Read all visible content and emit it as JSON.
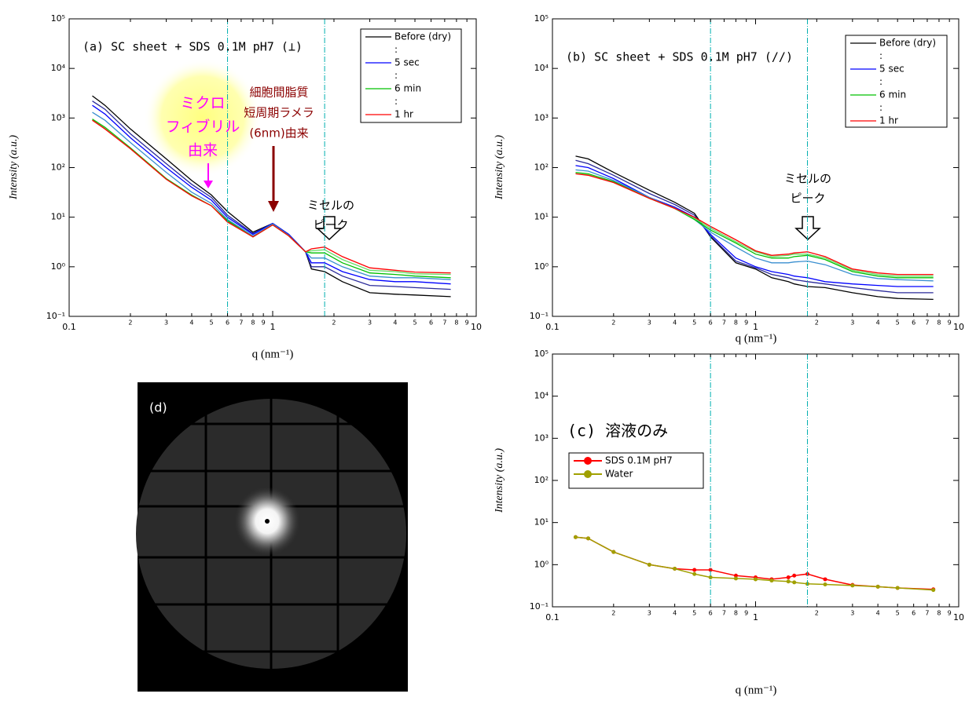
{
  "chart_data": [
    {
      "type": "line",
      "title": "(a)  SC sheet + SDS 0.1M  pH7 (⊥)",
      "xlabel": "q (nm⁻¹)",
      "ylabel": "Intensity (a.u.)",
      "log_x": true,
      "log_y": true,
      "xlim": [
        0.1,
        10
      ],
      "ylim": [
        0.1,
        100000
      ],
      "xticks": [
        0.1,
        1,
        10
      ],
      "xminor_ticks": [
        {
          "value": 0.2,
          "label": "2"
        },
        {
          "value": 0.3,
          "label": "3"
        },
        {
          "value": 0.4,
          "label": "4"
        },
        {
          "value": 0.5,
          "label": "5"
        },
        {
          "value": 0.6,
          "label": "6"
        },
        {
          "value": 0.7,
          "label": "7"
        },
        {
          "value": 0.8,
          "label": "8"
        },
        {
          "value": 0.9,
          "label": "9"
        },
        2,
        3,
        4,
        5,
        6,
        7,
        8,
        9
      ],
      "yticks": [
        {
          "value": 0.1,
          "label": "10⁻¹"
        },
        {
          "value": 1,
          "label": "10⁰"
        },
        {
          "value": 10,
          "label": "10¹"
        },
        {
          "value": 100,
          "label": "10²"
        },
        {
          "value": 1000,
          "label": "10³"
        },
        {
          "value": 10000,
          "label": "10⁴"
        },
        {
          "value": 100000,
          "label": "10⁵"
        }
      ],
      "vlines": [
        0.6,
        1.8
      ],
      "vline_color": "#00b0b0",
      "x": [
        0.13,
        0.15,
        0.2,
        0.3,
        0.4,
        0.5,
        0.6,
        0.8,
        1.0,
        1.2,
        1.45,
        1.55,
        1.8,
        2.2,
        3,
        4,
        5,
        7.5
      ],
      "series": [
        {
          "name": "Before (dry)",
          "color": "#000000",
          "values": [
            2800,
            1800,
            600,
            150,
            55,
            28,
            13,
            5,
            7.5,
            4.5,
            2,
            0.9,
            0.8,
            0.5,
            0.3,
            0.28,
            0.27,
            0.25
          ]
        },
        {
          "name": ":",
          "color": "#2a2a9a",
          "legend_swatch": false,
          "values": [
            2200,
            1500,
            480,
            120,
            46,
            25,
            11,
            4.7,
            7.5,
            4.5,
            2,
            1.0,
            1.0,
            0.65,
            0.42,
            0.4,
            0.38,
            0.35
          ]
        },
        {
          "name": "5 sec",
          "color": "#0000ff",
          "values": [
            1800,
            1200,
            400,
            100,
            40,
            22,
            10,
            4.5,
            7.5,
            4.5,
            2,
            1.2,
            1.2,
            0.8,
            0.55,
            0.5,
            0.5,
            0.45
          ]
        },
        {
          "name": ":",
          "color": "#3a8fd0",
          "legend_swatch": false,
          "values": [
            1300,
            900,
            320,
            80,
            32,
            19,
            9,
            4.2,
            7.3,
            4.3,
            2,
            1.5,
            1.5,
            1.0,
            0.65,
            0.6,
            0.6,
            0.55
          ]
        },
        {
          "name": "6 min",
          "color": "#00c000",
          "values": [
            950,
            650,
            250,
            60,
            28,
            17,
            8.5,
            4,
            7,
            4.2,
            2,
            1.9,
            1.9,
            1.2,
            0.75,
            0.7,
            0.65,
            0.6
          ]
        },
        {
          "name": ":",
          "color": "#66dd66",
          "legend_swatch": false,
          "values": [
            900,
            620,
            240,
            58,
            27,
            17,
            8,
            4,
            7,
            4.2,
            2,
            2.1,
            2.2,
            1.4,
            0.85,
            0.8,
            0.72,
            0.7
          ]
        },
        {
          "name": "1 hr",
          "color": "#ff0000",
          "values": [
            900,
            600,
            240,
            58,
            27,
            17,
            8,
            4,
            7,
            4.2,
            2,
            2.3,
            2.5,
            1.6,
            0.95,
            0.85,
            0.78,
            0.75
          ]
        }
      ],
      "annotations": [
        {
          "lines": [
            "ミクロ",
            "フィブリル",
            "由来"
          ],
          "color": "#ff00ff"
        },
        {
          "lines": [
            "細胞間脂質",
            "短周期ラメラ",
            "(6nm)由来"
          ],
          "color": "#8b0000"
        },
        {
          "lines": [
            "ミセルの",
            "ピーク"
          ],
          "color": "#000000"
        }
      ]
    },
    {
      "type": "line",
      "title": "(b)  SC sheet + SDS 0.1M  pH7 (//)",
      "xlabel": "q (nm⁻¹)",
      "ylabel": "Intensity (a.u.)",
      "log_x": true,
      "log_y": true,
      "xlim": [
        0.1,
        10
      ],
      "ylim": [
        0.1,
        100000
      ],
      "xticks": [
        0.1,
        1,
        10
      ],
      "xminor_ticks": [
        {
          "value": 0.2,
          "label": "2"
        },
        {
          "value": 0.3,
          "label": "3"
        },
        {
          "value": 0.4,
          "label": "4"
        },
        {
          "value": 0.5,
          "label": "5"
        },
        {
          "value": 0.6,
          "label": "6"
        },
        {
          "value": 0.7,
          "label": "7"
        },
        {
          "value": 0.8,
          "label": "8"
        },
        {
          "value": 0.9,
          "label": "9"
        },
        2,
        3,
        4,
        5,
        6,
        7,
        8,
        9
      ],
      "yticks": [
        {
          "value": 0.1,
          "label": "10⁻¹"
        },
        {
          "value": 1,
          "label": "10⁰"
        },
        {
          "value": 10,
          "label": "10¹"
        },
        {
          "value": 100,
          "label": "10²"
        },
        {
          "value": 1000,
          "label": "10³"
        },
        {
          "value": 10000,
          "label": "10⁴"
        },
        {
          "value": 100000,
          "label": "10⁵"
        }
      ],
      "vlines": [
        0.6,
        1.8
      ],
      "vline_color": "#00b0b0",
      "x": [
        0.13,
        0.15,
        0.2,
        0.3,
        0.4,
        0.5,
        0.6,
        0.8,
        1.0,
        1.2,
        1.45,
        1.55,
        1.8,
        2.2,
        3,
        4,
        5,
        7.5
      ],
      "series": [
        {
          "name": "Before (dry)",
          "color": "#000000",
          "values": [
            170,
            150,
            80,
            35,
            20,
            12,
            4,
            1.2,
            0.9,
            0.6,
            0.5,
            0.45,
            0.4,
            0.38,
            0.3,
            0.25,
            0.23,
            0.22
          ]
        },
        {
          "name": ":",
          "color": "#2a2a9a",
          "legend_swatch": false,
          "values": [
            140,
            120,
            70,
            30,
            18,
            11,
            4.2,
            1.3,
            0.95,
            0.7,
            0.6,
            0.55,
            0.5,
            0.45,
            0.38,
            0.33,
            0.3,
            0.3
          ]
        },
        {
          "name": "5 sec",
          "color": "#0000ff",
          "values": [
            110,
            100,
            60,
            25,
            16,
            10,
            4.5,
            1.5,
            1.0,
            0.8,
            0.7,
            0.65,
            0.6,
            0.5,
            0.45,
            0.42,
            0.4,
            0.4
          ]
        },
        {
          "name": ":",
          "color": "#3a8fd0",
          "legend_swatch": false,
          "values": [
            90,
            85,
            55,
            25,
            15,
            9,
            5,
            2.5,
            1.5,
            1.2,
            1.2,
            1.25,
            1.3,
            1.1,
            0.7,
            0.58,
            0.55,
            0.52
          ]
        },
        {
          "name": "6 min",
          "color": "#00c000",
          "values": [
            80,
            75,
            52,
            24,
            15,
            9,
            5.5,
            3,
            1.8,
            1.5,
            1.5,
            1.6,
            1.7,
            1.4,
            0.8,
            0.65,
            0.6,
            0.6
          ]
        },
        {
          "name": ":",
          "color": "#66dd66",
          "legend_swatch": false,
          "values": [
            78,
            72,
            50,
            24,
            15,
            9.5,
            6,
            3.2,
            2,
            1.6,
            1.7,
            1.8,
            1.8,
            1.5,
            0.85,
            0.7,
            0.65,
            0.65
          ]
        },
        {
          "name": "1 hr",
          "color": "#ff0000",
          "values": [
            75,
            70,
            50,
            24,
            15,
            10,
            6.5,
            3.5,
            2.1,
            1.7,
            1.8,
            1.9,
            2,
            1.6,
            0.9,
            0.75,
            0.7,
            0.7
          ]
        }
      ],
      "annotations": [
        {
          "lines": [
            "ミセルの",
            "ピーク"
          ],
          "color": "#000000"
        }
      ]
    },
    {
      "type": "line",
      "title": "(c) 溶液のみ",
      "xlabel": "q (nm⁻¹)",
      "ylabel": "Intensity (a.u.)",
      "log_x": true,
      "log_y": true,
      "xlim": [
        0.1,
        10
      ],
      "ylim": [
        0.1,
        100000
      ],
      "xticks": [
        0.1,
        1,
        10
      ],
      "xminor_ticks": [
        {
          "value": 0.2,
          "label": "2"
        },
        {
          "value": 0.3,
          "label": "3"
        },
        {
          "value": 0.4,
          "label": "4"
        },
        {
          "value": 0.5,
          "label": "5"
        },
        {
          "value": 0.6,
          "label": "6"
        },
        {
          "value": 0.7,
          "label": "7"
        },
        {
          "value": 0.8,
          "label": "8"
        },
        {
          "value": 0.9,
          "label": "9"
        },
        2,
        3,
        4,
        5,
        6,
        7,
        8,
        9
      ],
      "yticks": [
        {
          "value": 0.1,
          "label": "10⁻¹"
        },
        {
          "value": 1,
          "label": "10⁰"
        },
        {
          "value": 10,
          "label": "10¹"
        },
        {
          "value": 100,
          "label": "10²"
        },
        {
          "value": 1000,
          "label": "10³"
        },
        {
          "value": 10000,
          "label": "10⁴"
        },
        {
          "value": 100000,
          "label": "10⁵"
        }
      ],
      "vlines": [
        0.6,
        1.8
      ],
      "vline_color": "#00b0b0",
      "x": [
        0.13,
        0.15,
        0.2,
        0.3,
        0.4,
        0.5,
        0.6,
        0.8,
        1.0,
        1.2,
        1.45,
        1.55,
        1.8,
        2.2,
        3,
        4,
        5,
        7.5
      ],
      "series": [
        {
          "name": "SDS 0.1M pH7",
          "color": "#ff0000",
          "marker": "circle",
          "values": [
            4.5,
            4.2,
            2,
            1.0,
            0.8,
            0.75,
            0.75,
            0.55,
            0.5,
            0.45,
            0.5,
            0.55,
            0.6,
            0.45,
            0.33,
            0.3,
            0.28,
            0.26
          ]
        },
        {
          "name": "Water",
          "color": "#a0a000",
          "marker": "circle",
          "values": [
            4.5,
            4.2,
            2,
            1.0,
            0.8,
            0.6,
            0.5,
            0.47,
            0.45,
            0.42,
            0.4,
            0.38,
            0.35,
            0.34,
            0.32,
            0.3,
            0.28,
            0.25
          ]
        }
      ],
      "annotations": []
    }
  ],
  "image_panel": {
    "label": "(d)"
  }
}
